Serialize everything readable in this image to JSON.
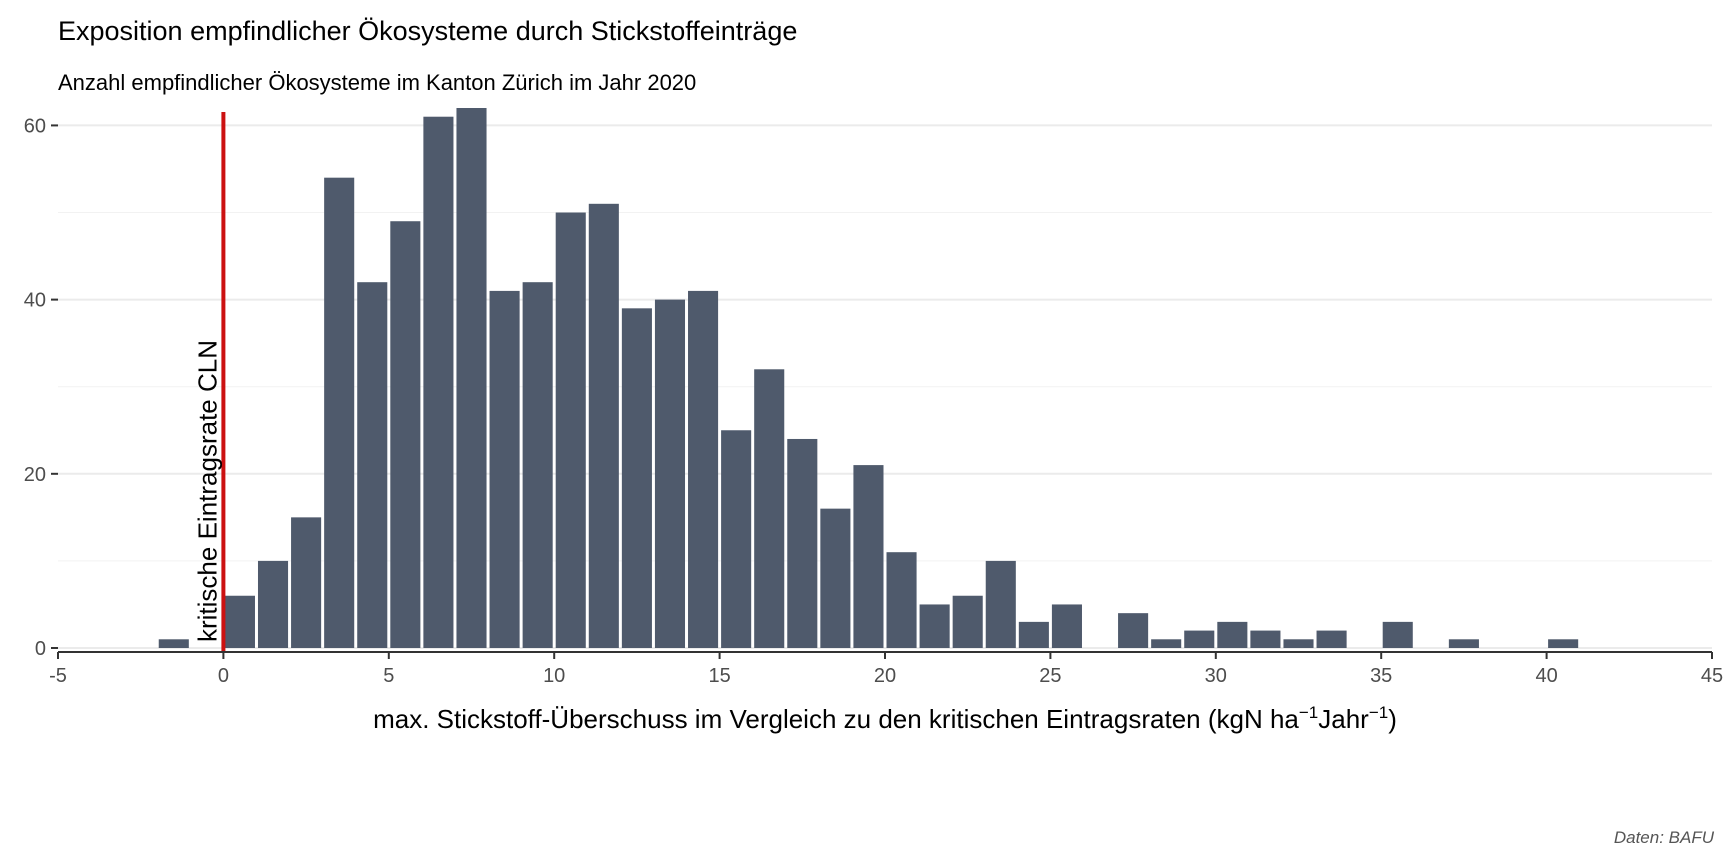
{
  "title": "Exposition empfindlicher Ökosysteme durch Stickstoffeinträge",
  "subtitle": "Anzahl empfindlicher Ökosysteme im Kanton Zürich im Jahr 2020",
  "caption": "Daten: BAFU",
  "colors": {
    "bar": "#4f5a6c",
    "critical_line": "#cc1111",
    "grid": "#ebebeb",
    "axis": "#333333"
  },
  "chart_data": {
    "type": "bar",
    "xlabel": "max. Stickstoff-Überschuss im Vergleich zu den kritischen Eintragsraten (kgN ha⁻¹Jahr⁻¹)",
    "xlabel_parts": {
      "main": "max. Stickstoff-Überschuss im Vergleich zu den kritischen Eintragsraten (kgN ha",
      "sup1": "−1",
      "mid": "Jahr",
      "sup2": "−1",
      "end": ")"
    },
    "ylabel": "",
    "xlim": [
      -5,
      45
    ],
    "ylim": [
      0,
      62
    ],
    "x_ticks": [
      -5,
      0,
      5,
      10,
      15,
      20,
      25,
      30,
      35,
      40,
      45
    ],
    "y_ticks": [
      0,
      20,
      40,
      60
    ],
    "y_minor_grid": [
      10,
      30,
      50
    ],
    "bin_width": 1,
    "bin_centers": [
      -1.5,
      0.5,
      1.5,
      2.5,
      3.5,
      4.5,
      5.5,
      6.5,
      7.5,
      8.5,
      9.5,
      10.5,
      11.5,
      12.5,
      13.5,
      14.5,
      15.5,
      16.5,
      17.5,
      18.5,
      19.5,
      20.5,
      21.5,
      22.5,
      23.5,
      24.5,
      25.5,
      27.5,
      28.5,
      29.5,
      30.5,
      31.5,
      32.5,
      33.5,
      35.5,
      37.5,
      40.5
    ],
    "values": [
      1,
      6,
      10,
      15,
      54,
      42,
      49,
      61,
      62,
      41,
      42,
      50,
      51,
      39,
      40,
      41,
      25,
      32,
      24,
      16,
      21,
      11,
      5,
      6,
      10,
      3,
      5,
      4,
      1,
      2,
      3,
      2,
      1,
      2,
      3,
      1,
      1
    ],
    "reference_line": {
      "x": 0,
      "label": "kritische Eintragsrate CLN"
    },
    "grid": true
  }
}
